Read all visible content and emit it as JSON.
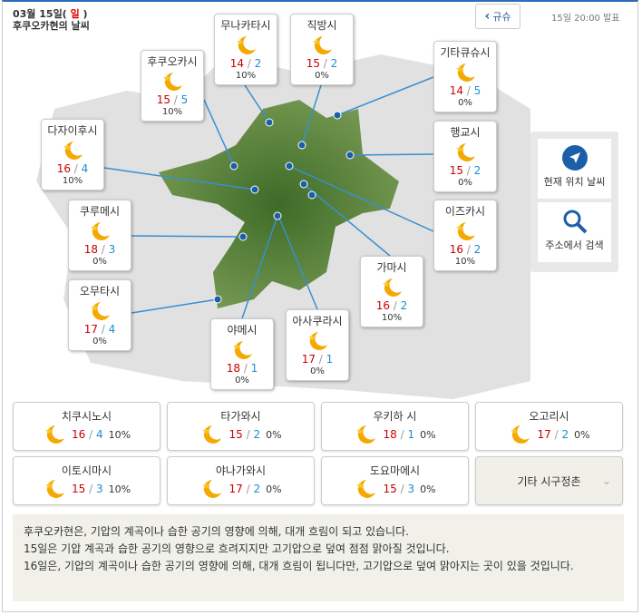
{
  "header": {
    "date": "03월 15일(",
    "weekday": "일",
    "date_close": ")",
    "title": "후쿠오카현의 날씨",
    "back_label": "규슈",
    "issued": "15일 20:00 발표"
  },
  "map_cities": [
    {
      "name": "무나카타시",
      "hi": "14",
      "lo": "2",
      "precip": "10%"
    },
    {
      "name": "직방시",
      "hi": "15",
      "lo": "2",
      "precip": "0%"
    },
    {
      "name": "후쿠오카시",
      "hi": "15",
      "lo": "5",
      "precip": "10%"
    },
    {
      "name": "기타큐슈시",
      "hi": "14",
      "lo": "5",
      "precip": "0%"
    },
    {
      "name": "다자이후시",
      "hi": "16",
      "lo": "4",
      "precip": "10%"
    },
    {
      "name": "행교시",
      "hi": "15",
      "lo": "2",
      "precip": "0%"
    },
    {
      "name": "쿠루메시",
      "hi": "18",
      "lo": "3",
      "precip": "0%"
    },
    {
      "name": "이즈카시",
      "hi": "16",
      "lo": "2",
      "precip": "10%"
    },
    {
      "name": "가마시",
      "hi": "16",
      "lo": "2",
      "precip": "10%"
    },
    {
      "name": "오무타시",
      "hi": "17",
      "lo": "4",
      "precip": "0%"
    },
    {
      "name": "야메시",
      "hi": "18",
      "lo": "1",
      "precip": "0%"
    },
    {
      "name": "아사쿠라시",
      "hi": "17",
      "lo": "1",
      "precip": "0%"
    }
  ],
  "side": {
    "location_label": "현재 위치 날씨",
    "search_label": "주소에서 검색"
  },
  "grid_cities": [
    {
      "name": "치쿠시노시",
      "hi": "16",
      "lo": "4",
      "precip": "10%"
    },
    {
      "name": "타가와시",
      "hi": "15",
      "lo": "2",
      "precip": "0%"
    },
    {
      "name": "우키하 시",
      "hi": "18",
      "lo": "1",
      "precip": "0%"
    },
    {
      "name": "오고리시",
      "hi": "17",
      "lo": "2",
      "precip": "0%"
    },
    {
      "name": "이토시마시",
      "hi": "15",
      "lo": "3",
      "precip": "10%"
    },
    {
      "name": "야나가와시",
      "hi": "17",
      "lo": "2",
      "precip": "0%"
    },
    {
      "name": "도요마에시",
      "hi": "15",
      "lo": "3",
      "precip": "0%"
    }
  ],
  "other_label": "기타 시구정촌",
  "weather_icon": "clear-night-moon-icon",
  "colors": {
    "high": "#cc0000",
    "low": "#1a8fd0",
    "accent": "#2a6ebb"
  },
  "description": [
    "후쿠오카현은, 기압의 계곡이나 습한 공기의 영향에 의해, 대개 흐림이 되고 있습니다.",
    "15일은 기압 계곡과 습한 공기의 영향으로 흐려지지만 고기압으로 덮여 점점 맑아질 것입니다.",
    "16일은, 기압의 계곡이나 습한 공기의 영향에 의해, 대개 흐림이 됩니다만, 고기압으로 덮여 맑아지는 곳이 있을 것입니다."
  ]
}
